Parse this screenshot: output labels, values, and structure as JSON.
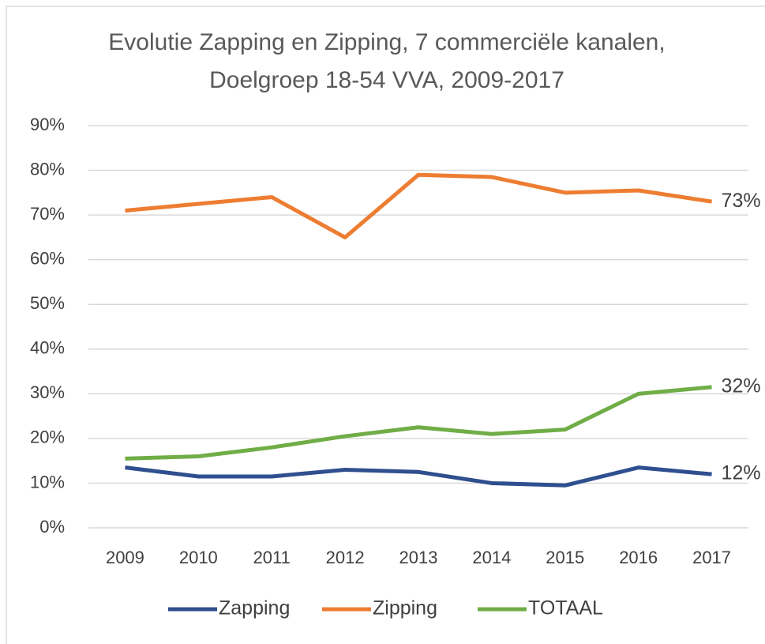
{
  "chart_data": {
    "type": "line",
    "title": "Evolutie Zapping en Zipping, 7 commerciële kanalen, Doelgroep 18-54 VVA, 2009-2017",
    "categories": [
      "2009",
      "2010",
      "2011",
      "2012",
      "2013",
      "2014",
      "2015",
      "2016",
      "2017"
    ],
    "series": [
      {
        "name": "Zapping",
        "color": "#2f4f8f",
        "values": [
          13.5,
          11.5,
          11.5,
          13,
          12.5,
          10,
          9.5,
          13.5,
          12
        ],
        "value_labels": [
          null,
          null,
          null,
          null,
          null,
          null,
          null,
          null,
          "12%"
        ]
      },
      {
        "name": "Zipping",
        "color": "#ed7d31",
        "values": [
          71,
          72.5,
          74,
          65,
          79,
          78.5,
          75,
          75.5,
          73
        ],
        "value_labels": [
          null,
          null,
          null,
          null,
          null,
          null,
          null,
          null,
          "73%"
        ]
      },
      {
        "name": "TOTAAL",
        "color": "#70ad47",
        "values": [
          15.5,
          16,
          18,
          20.5,
          22.5,
          21,
          22,
          30,
          31.5
        ],
        "value_labels": [
          null,
          null,
          null,
          null,
          null,
          null,
          null,
          null,
          "32%"
        ]
      }
    ],
    "ylim": [
      0,
      90
    ],
    "yticks": [
      {
        "value": 0,
        "label": "0%"
      },
      {
        "value": 10,
        "label": "10%"
      },
      {
        "value": 20,
        "label": "20%"
      },
      {
        "value": 30,
        "label": "30%"
      },
      {
        "value": 40,
        "label": "40%"
      },
      {
        "value": 50,
        "label": "50%"
      },
      {
        "value": 60,
        "label": "60%"
      },
      {
        "value": 70,
        "label": "70%"
      },
      {
        "value": 80,
        "label": "80%"
      },
      {
        "value": 90,
        "label": "90%"
      }
    ],
    "grid": true,
    "legend": "bottom"
  }
}
